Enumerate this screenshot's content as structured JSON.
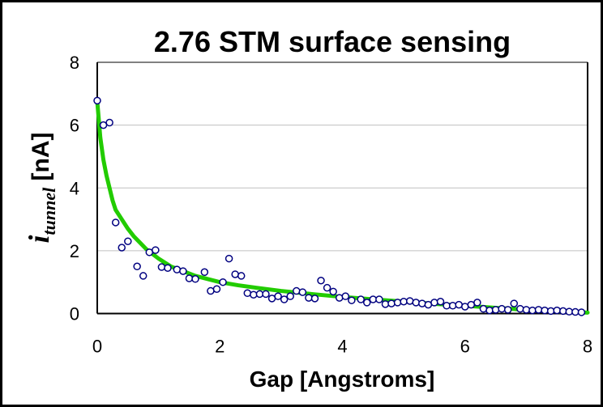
{
  "chart_data": {
    "type": "scatter",
    "title": "2.76 STM surface sensing",
    "xlabel": "Gap [Angstroms]",
    "ylabel": {
      "main": "i",
      "subscript": "tunnel",
      "unit": " [nA]"
    },
    "xlim": [
      0,
      8
    ],
    "ylim": [
      0,
      8
    ],
    "xticks": [
      "0",
      "2",
      "4",
      "6",
      "8"
    ],
    "yticks": [
      "0",
      "2",
      "4",
      "6",
      "8"
    ],
    "grid": "horizontal",
    "legend": "none",
    "colors": {
      "points": "#000080",
      "fit": "#22cc00",
      "grid": "#c0c0c0"
    },
    "series": [
      {
        "kind": "scatter",
        "points": [
          [
            0.0,
            6.78
          ],
          [
            0.1,
            6.0
          ],
          [
            0.2,
            6.08
          ],
          [
            0.3,
            2.9
          ],
          [
            0.4,
            2.1
          ],
          [
            0.5,
            2.3
          ],
          [
            0.65,
            1.5
          ],
          [
            0.75,
            1.2
          ],
          [
            0.85,
            1.95
          ],
          [
            0.95,
            2.02
          ],
          [
            1.05,
            1.48
          ],
          [
            1.15,
            1.45
          ],
          [
            1.3,
            1.4
          ],
          [
            1.4,
            1.35
          ],
          [
            1.5,
            1.12
          ],
          [
            1.6,
            1.1
          ],
          [
            1.75,
            1.32
          ],
          [
            1.85,
            0.72
          ],
          [
            1.95,
            0.78
          ],
          [
            2.05,
            1.0
          ],
          [
            2.15,
            1.75
          ],
          [
            2.25,
            1.25
          ],
          [
            2.35,
            1.2
          ],
          [
            2.45,
            0.65
          ],
          [
            2.55,
            0.6
          ],
          [
            2.65,
            0.62
          ],
          [
            2.75,
            0.62
          ],
          [
            2.85,
            0.48
          ],
          [
            2.95,
            0.55
          ],
          [
            3.05,
            0.45
          ],
          [
            3.15,
            0.55
          ],
          [
            3.25,
            0.72
          ],
          [
            3.35,
            0.68
          ],
          [
            3.45,
            0.5
          ],
          [
            3.55,
            0.48
          ],
          [
            3.65,
            1.05
          ],
          [
            3.75,
            0.82
          ],
          [
            3.85,
            0.7
          ],
          [
            3.95,
            0.5
          ],
          [
            4.05,
            0.55
          ],
          [
            4.15,
            0.42
          ],
          [
            4.3,
            0.45
          ],
          [
            4.4,
            0.35
          ],
          [
            4.5,
            0.45
          ],
          [
            4.6,
            0.45
          ],
          [
            4.7,
            0.3
          ],
          [
            4.8,
            0.32
          ],
          [
            4.9,
            0.35
          ],
          [
            5.0,
            0.38
          ],
          [
            5.1,
            0.4
          ],
          [
            5.2,
            0.35
          ],
          [
            5.3,
            0.32
          ],
          [
            5.4,
            0.28
          ],
          [
            5.5,
            0.35
          ],
          [
            5.6,
            0.38
          ],
          [
            5.7,
            0.25
          ],
          [
            5.8,
            0.25
          ],
          [
            5.9,
            0.28
          ],
          [
            6.0,
            0.22
          ],
          [
            6.1,
            0.28
          ],
          [
            6.2,
            0.35
          ],
          [
            6.3,
            0.15
          ],
          [
            6.4,
            0.1
          ],
          [
            6.5,
            0.12
          ],
          [
            6.6,
            0.15
          ],
          [
            6.7,
            0.12
          ],
          [
            6.8,
            0.32
          ],
          [
            6.9,
            0.15
          ],
          [
            7.0,
            0.12
          ],
          [
            7.1,
            0.1
          ],
          [
            7.2,
            0.12
          ],
          [
            7.3,
            0.1
          ],
          [
            7.4,
            0.08
          ],
          [
            7.5,
            0.1
          ],
          [
            7.6,
            0.08
          ],
          [
            7.7,
            0.06
          ],
          [
            7.8,
            0.05
          ],
          [
            7.9,
            0.04
          ]
        ]
      },
      {
        "kind": "line",
        "points": [
          [
            0.0,
            6.75
          ],
          [
            0.05,
            5.6
          ],
          [
            0.1,
            4.9
          ],
          [
            0.15,
            4.4
          ],
          [
            0.2,
            4.0
          ],
          [
            0.25,
            3.6
          ],
          [
            0.3,
            3.3
          ],
          [
            0.4,
            3.0
          ],
          [
            0.5,
            2.7
          ],
          [
            0.6,
            2.45
          ],
          [
            0.7,
            2.25
          ],
          [
            0.8,
            2.05
          ],
          [
            0.9,
            1.9
          ],
          [
            1.0,
            1.75
          ],
          [
            1.2,
            1.5
          ],
          [
            1.4,
            1.35
          ],
          [
            1.6,
            1.2
          ],
          [
            1.8,
            1.1
          ],
          [
            2.0,
            1.0
          ],
          [
            2.3,
            0.9
          ],
          [
            2.6,
            0.82
          ],
          [
            3.0,
            0.72
          ],
          [
            3.5,
            0.62
          ],
          [
            4.0,
            0.53
          ],
          [
            4.5,
            0.45
          ],
          [
            5.0,
            0.38
          ],
          [
            5.5,
            0.31
          ],
          [
            6.0,
            0.25
          ],
          [
            6.5,
            0.18
          ],
          [
            7.0,
            0.12
          ],
          [
            7.5,
            0.07
          ],
          [
            8.0,
            0.03
          ]
        ]
      }
    ]
  }
}
